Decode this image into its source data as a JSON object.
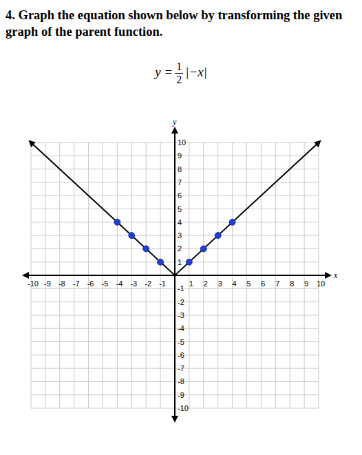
{
  "problem": {
    "number": "4.",
    "text": "Graph the equation shown below by transforming the given graph of the parent function.",
    "equation": {
      "lhs": "y =",
      "numerator": "1",
      "denominator": "2",
      "expression": "|−x|"
    }
  },
  "chart_data": {
    "type": "line",
    "x_label": "x",
    "y_label": "y",
    "xlim": [
      -10,
      10
    ],
    "ylim": [
      -10,
      10
    ],
    "xticks": [
      -10,
      -9,
      -8,
      -7,
      -6,
      -5,
      -4,
      -3,
      -2,
      -1,
      1,
      2,
      3,
      4,
      5,
      6,
      7,
      8,
      9,
      10
    ],
    "yticks": [
      -10,
      -9,
      -8,
      -7,
      -6,
      -5,
      -4,
      -3,
      -2,
      -1,
      1,
      2,
      3,
      4,
      5,
      6,
      7,
      8,
      9,
      10
    ],
    "grid": true,
    "series": [
      {
        "type": "line",
        "color": "#000000",
        "line_style": "solid",
        "x": [
          -10,
          0,
          10
        ],
        "values": [
          10,
          0,
          10
        ]
      },
      {
        "type": "scatter",
        "color": "#1f3fd6",
        "marker": "circle",
        "x": [
          -4,
          -3,
          -2,
          -1,
          1,
          2,
          3,
          4
        ],
        "values": [
          4,
          3,
          2,
          1,
          1,
          2,
          3,
          4
        ]
      }
    ]
  }
}
